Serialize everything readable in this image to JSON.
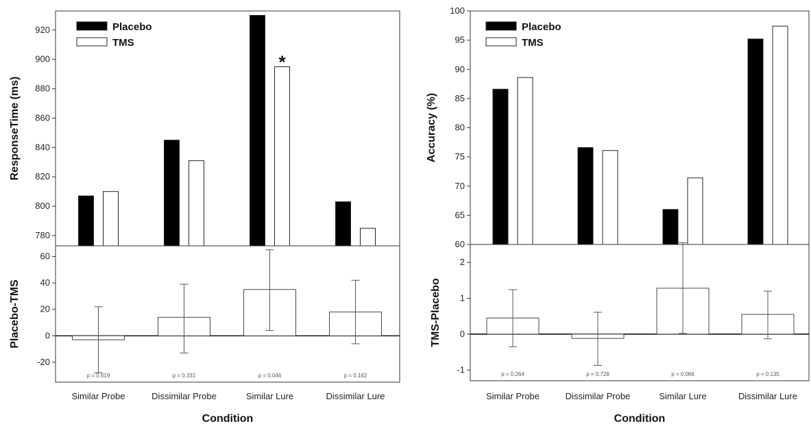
{
  "chart_data": [
    {
      "type": "bar",
      "ylabel": "ResponseTime (ms)",
      "xlabel": "Condition",
      "categories": [
        "Similar Probe",
        "Dissimilar Probe",
        "Similar Lure",
        "Dissimilar Lure"
      ],
      "ylim": [
        773,
        933
      ],
      "yticks": [
        780,
        800,
        820,
        840,
        860,
        880,
        900,
        920
      ],
      "legend_position": "top-left",
      "series": [
        {
          "name": "Placebo",
          "color": "#000000",
          "values": [
            807,
            845,
            930,
            803
          ]
        },
        {
          "name": "TMS",
          "color": "#ffffff",
          "values": [
            810,
            831,
            895,
            785
          ]
        }
      ],
      "annotations": [
        {
          "category": "Similar Lure",
          "series": "TMS",
          "text": "*"
        }
      ],
      "difference": {
        "ylabel": "Placebo-TMS",
        "ylim": [
          -35,
          68
        ],
        "yticks": [
          -20,
          0,
          20,
          40,
          60
        ],
        "values": [
          -3,
          14,
          35,
          18
        ],
        "ci_low": [
          -28,
          -13,
          4,
          -6
        ],
        "ci_high": [
          22,
          39,
          65,
          42
        ],
        "p_values": [
          "p = 0.619",
          "p = 0.331",
          "p = 0.046",
          "p = 0.162"
        ]
      }
    },
    {
      "type": "bar",
      "ylabel": "Accuracy (%)",
      "xlabel": "Condition",
      "categories": [
        "Similar Probe",
        "Dissimilar Probe",
        "Similar Lure",
        "Dissimilar Lure"
      ],
      "ylim": [
        60,
        100
      ],
      "yticks": [
        60,
        65,
        70,
        75,
        80,
        85,
        90,
        95,
        100
      ],
      "legend_position": "top-left",
      "series": [
        {
          "name": "Placebo",
          "color": "#000000",
          "values": [
            86.6,
            76.6,
            66,
            95.2
          ]
        },
        {
          "name": "TMS",
          "color": "#ffffff",
          "values": [
            88.6,
            76.1,
            71.4,
            97.4
          ]
        }
      ],
      "difference": {
        "ylabel": "TMS-Placebo",
        "ylim": [
          -1.3,
          2.5
        ],
        "yticks": [
          -1,
          0,
          1,
          2
        ],
        "values": [
          0.45,
          -0.12,
          1.28,
          0.55
        ],
        "ci_low": [
          -0.35,
          -0.87,
          0.02,
          -0.13
        ],
        "ci_high": [
          1.24,
          0.61,
          2.55,
          1.2
        ],
        "p_values": [
          "p = 0.264",
          "p = 0.728",
          "p = 0.066",
          "p = 0.135"
        ]
      }
    }
  ]
}
